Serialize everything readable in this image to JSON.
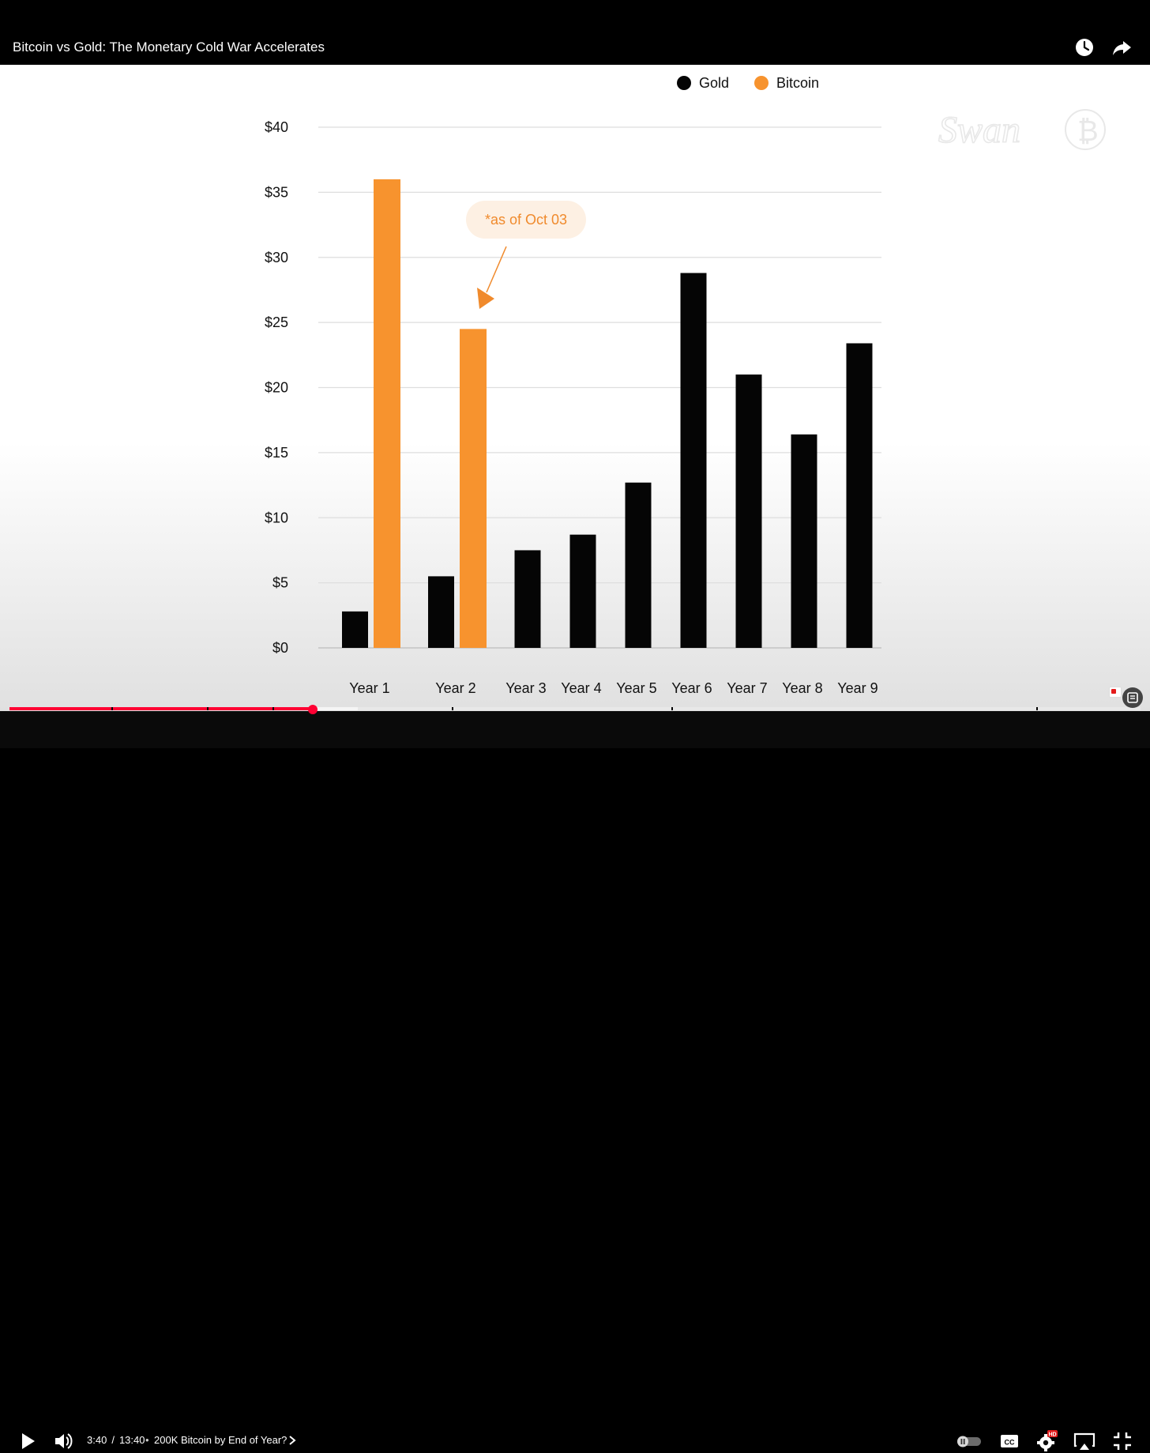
{
  "player": {
    "title": "Bitcoin vs Gold: The Monetary Cold War Accelerates",
    "current_time": "3:40",
    "duration": "13:40",
    "time_separator": "/",
    "chapter_title": "200K Bitcoin by End of Year?",
    "chapter_bullet": "•",
    "progress_fraction": 0.2683,
    "buffered_fraction": 0.308,
    "hd_badge": "HD",
    "accent_color": "#ff0033"
  },
  "icons": {
    "watch_later": "clock-icon",
    "share": "share-icon",
    "play": "play-icon",
    "volume": "volume-icon",
    "autoplay": "autoplay-toggle-icon",
    "captions": "captions-icon",
    "settings": "gear-icon",
    "airplay": "airplay-icon",
    "fullscreen_exit": "fullscreen-exit-icon"
  },
  "chart_data": {
    "type": "bar",
    "categories": [
      "Year 1",
      "Year 2",
      "Year 3",
      "Year 4",
      "Year 5",
      "Year 6",
      "Year 7",
      "Year 8",
      "Year 9"
    ],
    "series": [
      {
        "name": "Gold",
        "color": "#050505",
        "values": [
          2.8,
          5.5,
          7.5,
          8.7,
          12.7,
          28.8,
          21.0,
          16.4,
          23.4
        ]
      },
      {
        "name": "Bitcoin",
        "color": "#f7932e",
        "values": [
          36.0,
          24.5,
          null,
          null,
          null,
          null,
          null,
          null,
          null
        ]
      }
    ],
    "y_ticks": [
      "$0",
      "$5",
      "$10",
      "$15",
      "$20",
      "$25",
      "$30",
      "$35",
      "$40"
    ],
    "ylim": [
      0,
      40
    ],
    "grid": true,
    "legend_position": "top-right",
    "annotation": {
      "text": "*as of Oct 03",
      "target_category": "Year 2",
      "target_series": "Bitcoin"
    },
    "watermark": "Swan"
  }
}
